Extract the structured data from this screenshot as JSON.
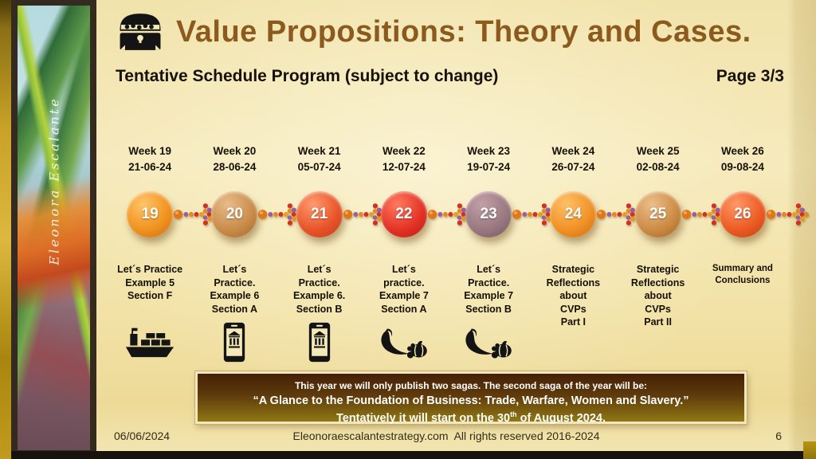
{
  "slide": {
    "title": "Value Propositions: Theory and Cases.",
    "title_icon": "treasure-chest",
    "subtitle": "Tentative Schedule Program (subject to change)",
    "page_label": "Page 3/3",
    "signature": "Eleonora Escalante"
  },
  "timeline": {
    "weeks": [
      {
        "week": "Week 19",
        "date": "21-06-24",
        "number": "19",
        "colors": {
          "light": "#FFC46A",
          "base": "#F0921E",
          "dark": "#C86E10"
        },
        "description": [
          "Let´s Practice",
          "Example 5",
          "Section F"
        ],
        "icon": "cargo-ship"
      },
      {
        "week": "Week 20",
        "date": "28-06-24",
        "number": "20",
        "colors": {
          "light": "#E8BC88",
          "base": "#C98C4A",
          "dark": "#A06428"
        },
        "description": [
          "Let´s",
          "Practice.",
          "Example 6",
          "Section A"
        ],
        "icon": "mobile-banking"
      },
      {
        "week": "Week 21",
        "date": "05-07-24",
        "number": "21",
        "colors": {
          "light": "#FF9A6E",
          "base": "#E8542A",
          "dark": "#C23A12"
        },
        "description": [
          "Let´s",
          "Practice.",
          "Example 6.",
          "Section B"
        ],
        "icon": "mobile-banking"
      },
      {
        "week": "Week 22",
        "date": "12-07-24",
        "number": "22",
        "colors": {
          "light": "#FF7A60",
          "base": "#E33225",
          "dark": "#B51E12"
        },
        "description": [
          "Let´s",
          "practice.",
          "Example 7",
          "Section A"
        ],
        "icon": "cornucopia"
      },
      {
        "week": "Week 23",
        "date": "19-07-24",
        "number": "23",
        "colors": {
          "light": "#C2A0A8",
          "base": "#9A7880",
          "dark": "#715660"
        },
        "description": [
          "Let´s",
          "Practice.",
          "Example 7",
          "Section B"
        ],
        "icon": "cornucopia"
      },
      {
        "week": "Week 24",
        "date": "26-07-24",
        "number": "24",
        "colors": {
          "light": "#FFC068",
          "base": "#F09125",
          "dark": "#C86C0E"
        },
        "description": [
          "Strategic",
          "Reflections",
          "about",
          "CVPs",
          "Part I"
        ],
        "icon": null
      },
      {
        "week": "Week 25",
        "date": "02-08-24",
        "number": "25",
        "colors": {
          "light": "#ECBE8A",
          "base": "#CC8B45",
          "dark": "#A26426"
        },
        "description": [
          "Strategic",
          "Reflections",
          "about",
          "CVPs",
          "Part II"
        ],
        "icon": null
      },
      {
        "week": "Week 26",
        "date": "09-08-24",
        "number": "26",
        "colors": {
          "light": "#FF9868",
          "base": "#EC5B22",
          "dark": "#BE3E10"
        },
        "description": [
          "Summary and",
          "Conclusions"
        ],
        "icon": null,
        "small": true
      }
    ]
  },
  "banner": {
    "line1": "This year we will only publish two sagas. The second saga of the year will be:",
    "line2": "“A Glance to the Foundation of Business: Trade, Warfare, Women and Slavery.”",
    "line3_prefix": "Tentatively it will start on the 30",
    "line3_sup": "th",
    "line3_suffix": " of August 2024."
  },
  "footer": {
    "date": "06/06/2024",
    "center": "Eleonoraescalantestrategy.com  All rights reserved 2016-2024",
    "page_number": "6"
  }
}
